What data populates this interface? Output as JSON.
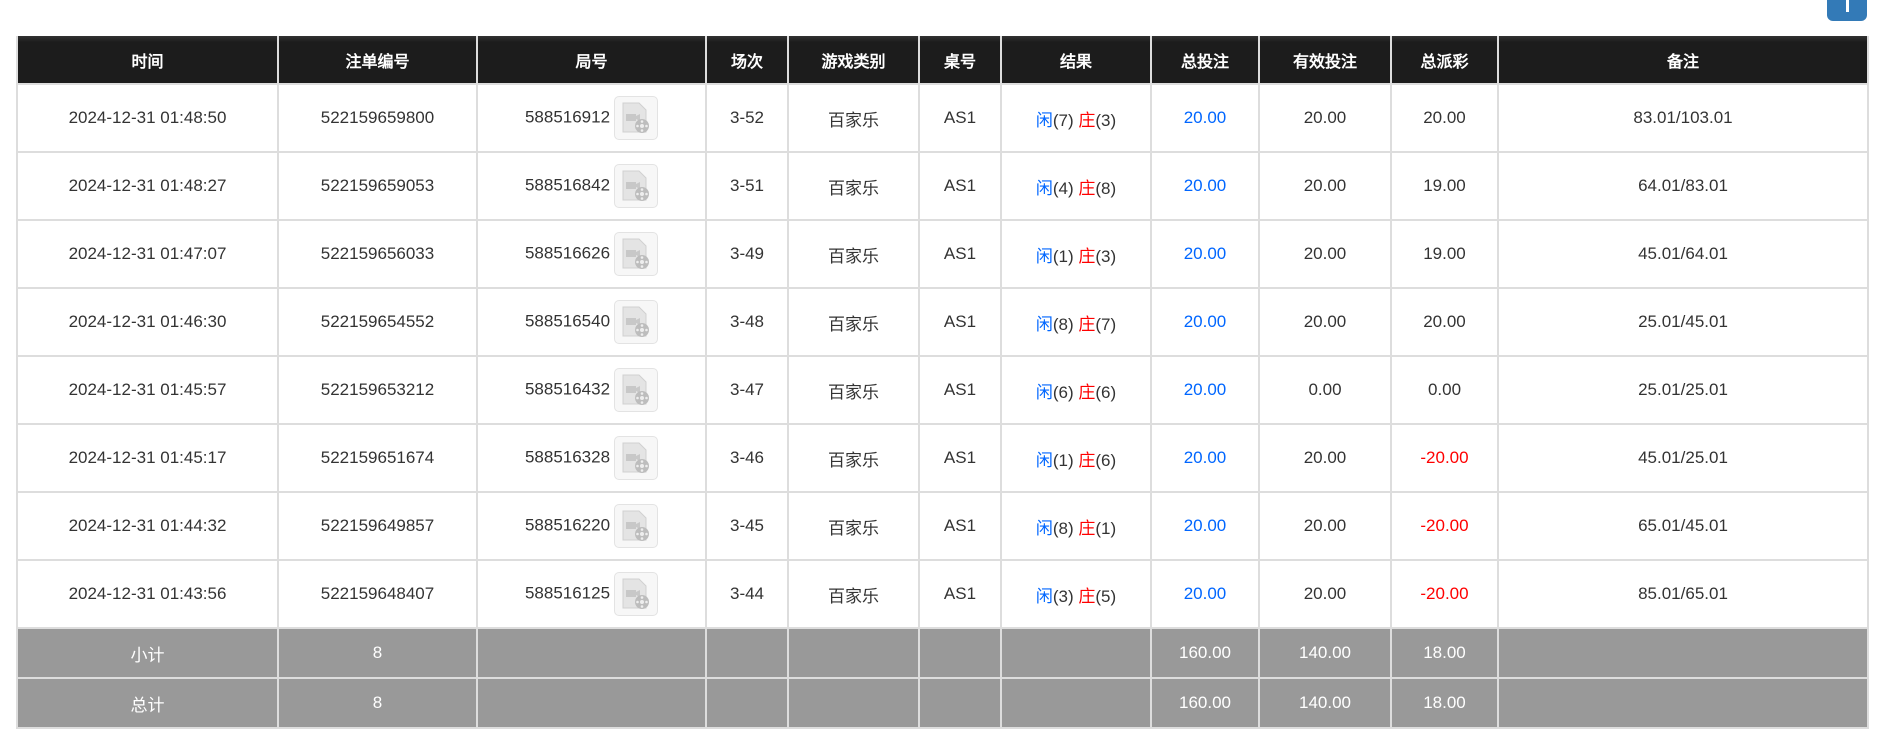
{
  "columns": [
    "时间",
    "注单编号",
    "局号",
    "场次",
    "游戏类别",
    "桌号",
    "结果",
    "总投注",
    "有效投注",
    "总派彩",
    "备注"
  ],
  "rows": [
    {
      "time": "2024-12-31 01:48:50",
      "bet_id": "522159659800",
      "round": "588516912",
      "session": "3-52",
      "game": "百家乐",
      "table": "AS1",
      "player": "闲",
      "player_pts": "(7)",
      "banker": "庄",
      "banker_pts": "(3)",
      "total_bet": "20.00",
      "valid_bet": "20.00",
      "payout": "20.00",
      "payout_negative": false,
      "note": "83.01/103.01"
    },
    {
      "time": "2024-12-31 01:48:27",
      "bet_id": "522159659053",
      "round": "588516842",
      "session": "3-51",
      "game": "百家乐",
      "table": "AS1",
      "player": "闲",
      "player_pts": "(4)",
      "banker": "庄",
      "banker_pts": "(8)",
      "total_bet": "20.00",
      "valid_bet": "20.00",
      "payout": "19.00",
      "payout_negative": false,
      "note": "64.01/83.01"
    },
    {
      "time": "2024-12-31 01:47:07",
      "bet_id": "522159656033",
      "round": "588516626",
      "session": "3-49",
      "game": "百家乐",
      "table": "AS1",
      "player": "闲",
      "player_pts": "(1)",
      "banker": "庄",
      "banker_pts": "(3)",
      "total_bet": "20.00",
      "valid_bet": "20.00",
      "payout": "19.00",
      "payout_negative": false,
      "note": "45.01/64.01"
    },
    {
      "time": "2024-12-31 01:46:30",
      "bet_id": "522159654552",
      "round": "588516540",
      "session": "3-48",
      "game": "百家乐",
      "table": "AS1",
      "player": "闲",
      "player_pts": "(8)",
      "banker": "庄",
      "banker_pts": "(7)",
      "total_bet": "20.00",
      "valid_bet": "20.00",
      "payout": "20.00",
      "payout_negative": false,
      "note": "25.01/45.01"
    },
    {
      "time": "2024-12-31 01:45:57",
      "bet_id": "522159653212",
      "round": "588516432",
      "session": "3-47",
      "game": "百家乐",
      "table": "AS1",
      "player": "闲",
      "player_pts": "(6)",
      "banker": "庄",
      "banker_pts": "(6)",
      "total_bet": "20.00",
      "valid_bet": "0.00",
      "payout": "0.00",
      "payout_negative": false,
      "note": "25.01/25.01"
    },
    {
      "time": "2024-12-31 01:45:17",
      "bet_id": "522159651674",
      "round": "588516328",
      "session": "3-46",
      "game": "百家乐",
      "table": "AS1",
      "player": "闲",
      "player_pts": "(1)",
      "banker": "庄",
      "banker_pts": "(6)",
      "total_bet": "20.00",
      "valid_bet": "20.00",
      "payout": "-20.00",
      "payout_negative": true,
      "note": "45.01/25.01"
    },
    {
      "time": "2024-12-31 01:44:32",
      "bet_id": "522159649857",
      "round": "588516220",
      "session": "3-45",
      "game": "百家乐",
      "table": "AS1",
      "player": "闲",
      "player_pts": "(8)",
      "banker": "庄",
      "banker_pts": "(1)",
      "total_bet": "20.00",
      "valid_bet": "20.00",
      "payout": "-20.00",
      "payout_negative": true,
      "note": "65.01/45.01"
    },
    {
      "time": "2024-12-31 01:43:56",
      "bet_id": "522159648407",
      "round": "588516125",
      "session": "3-44",
      "game": "百家乐",
      "table": "AS1",
      "player": "闲",
      "player_pts": "(3)",
      "banker": "庄",
      "banker_pts": "(5)",
      "total_bet": "20.00",
      "valid_bet": "20.00",
      "payout": "-20.00",
      "payout_negative": true,
      "note": "85.01/65.01"
    }
  ],
  "subtotal": {
    "label": "小计",
    "count": "8",
    "total_bet": "160.00",
    "valid_bet": "140.00",
    "payout": "18.00"
  },
  "total": {
    "label": "总计",
    "count": "8",
    "total_bet": "160.00",
    "valid_bet": "140.00",
    "payout": "18.00"
  },
  "colors": {
    "header_bg": "#1c1c1c",
    "summary_bg": "#999999",
    "player": "#0066ff",
    "banker": "#ff0000",
    "negative": "#ff0000",
    "top_button": "#337ab7"
  },
  "icons": {
    "replay": "video-file-icon"
  }
}
